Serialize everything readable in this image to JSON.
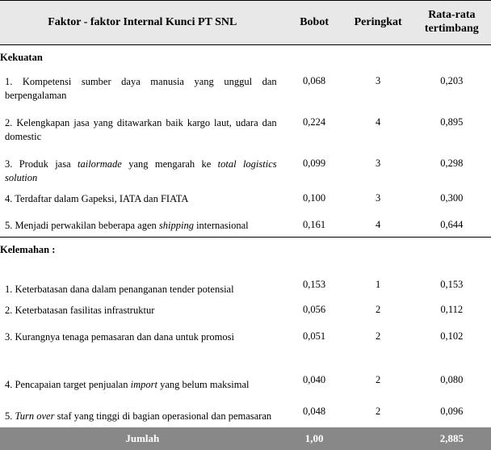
{
  "headers": {
    "factor": "Faktor - faktor Internal Kunci PT SNL",
    "bobot": "Bobot",
    "peringkat": "Peringkat",
    "rata_rata": "Rata-rata tertimbang"
  },
  "sections": {
    "kekuatan": "Kekuatan",
    "kelemahan": "Kelemahan :"
  },
  "kekuatan_rows": [
    {
      "factor": "1. Kompetensi sumber daya manusia yang unggul dan berpengalaman",
      "bobot": "0,068",
      "peringkat": "3",
      "rata": "0,203"
    },
    {
      "factor": "2. Kelengkapan jasa yang ditawarkan baik kargo laut, udara dan domestic",
      "bobot": "0,224",
      "peringkat": "4",
      "rata": "0,895"
    },
    {
      "factor_html": "3. Produk jasa <span class=\"italic\">tailormade</span> yang mengarah ke <span class=\"italic\">total logistics solution</span>",
      "bobot": "0,099",
      "peringkat": "3",
      "rata": "0,298"
    },
    {
      "factor": "4. Terdaftar dalam Gapeksi, IATA dan FIATA",
      "bobot": "0,100",
      "peringkat": "3",
      "rata": "0,300"
    },
    {
      "factor_html": "5. Menjadi perwakilan beberapa agen <span class=\"italic\">shipping</span> internasional",
      "bobot": "0,161",
      "peringkat": "4",
      "rata": "0,644"
    }
  ],
  "kelemahan_rows": [
    {
      "factor": "1. Keterbatasan dana dalam penanganan tender potensial",
      "bobot": "0,153",
      "peringkat": "1",
      "rata": "0,153"
    },
    {
      "factor": "2. Keterbatasan fasilitas infrastruktur",
      "bobot": "0,056",
      "peringkat": "2",
      "rata": "0,112"
    },
    {
      "factor": "3. Kurangnya tenaga pemasaran dan dana untuk promosi",
      "bobot": "0,051",
      "peringkat": "2",
      "rata": "0,102"
    },
    {
      "factor_html": "4. Pencapaian target penjualan <span class=\"italic\">import</span> yang belum maksimal",
      "bobot": "0,040",
      "peringkat": "2",
      "rata": "0,080"
    },
    {
      "factor_html": "5. <span class=\"italic\">Turn over</span> staf  yang tinggi di bagian operasional dan pemasaran",
      "bobot": "0,048",
      "peringkat": "2",
      "rata": "0,096"
    }
  ],
  "total": {
    "label": "Jumlah",
    "bobot": "1,00",
    "peringkat": "",
    "rata": "2,885"
  },
  "colors": {
    "header_bg": "#e8e8e8",
    "total_bg": "#888888",
    "total_text": "#ffffff",
    "border": "#000000",
    "text": "#000000",
    "bg": "#ffffff"
  }
}
